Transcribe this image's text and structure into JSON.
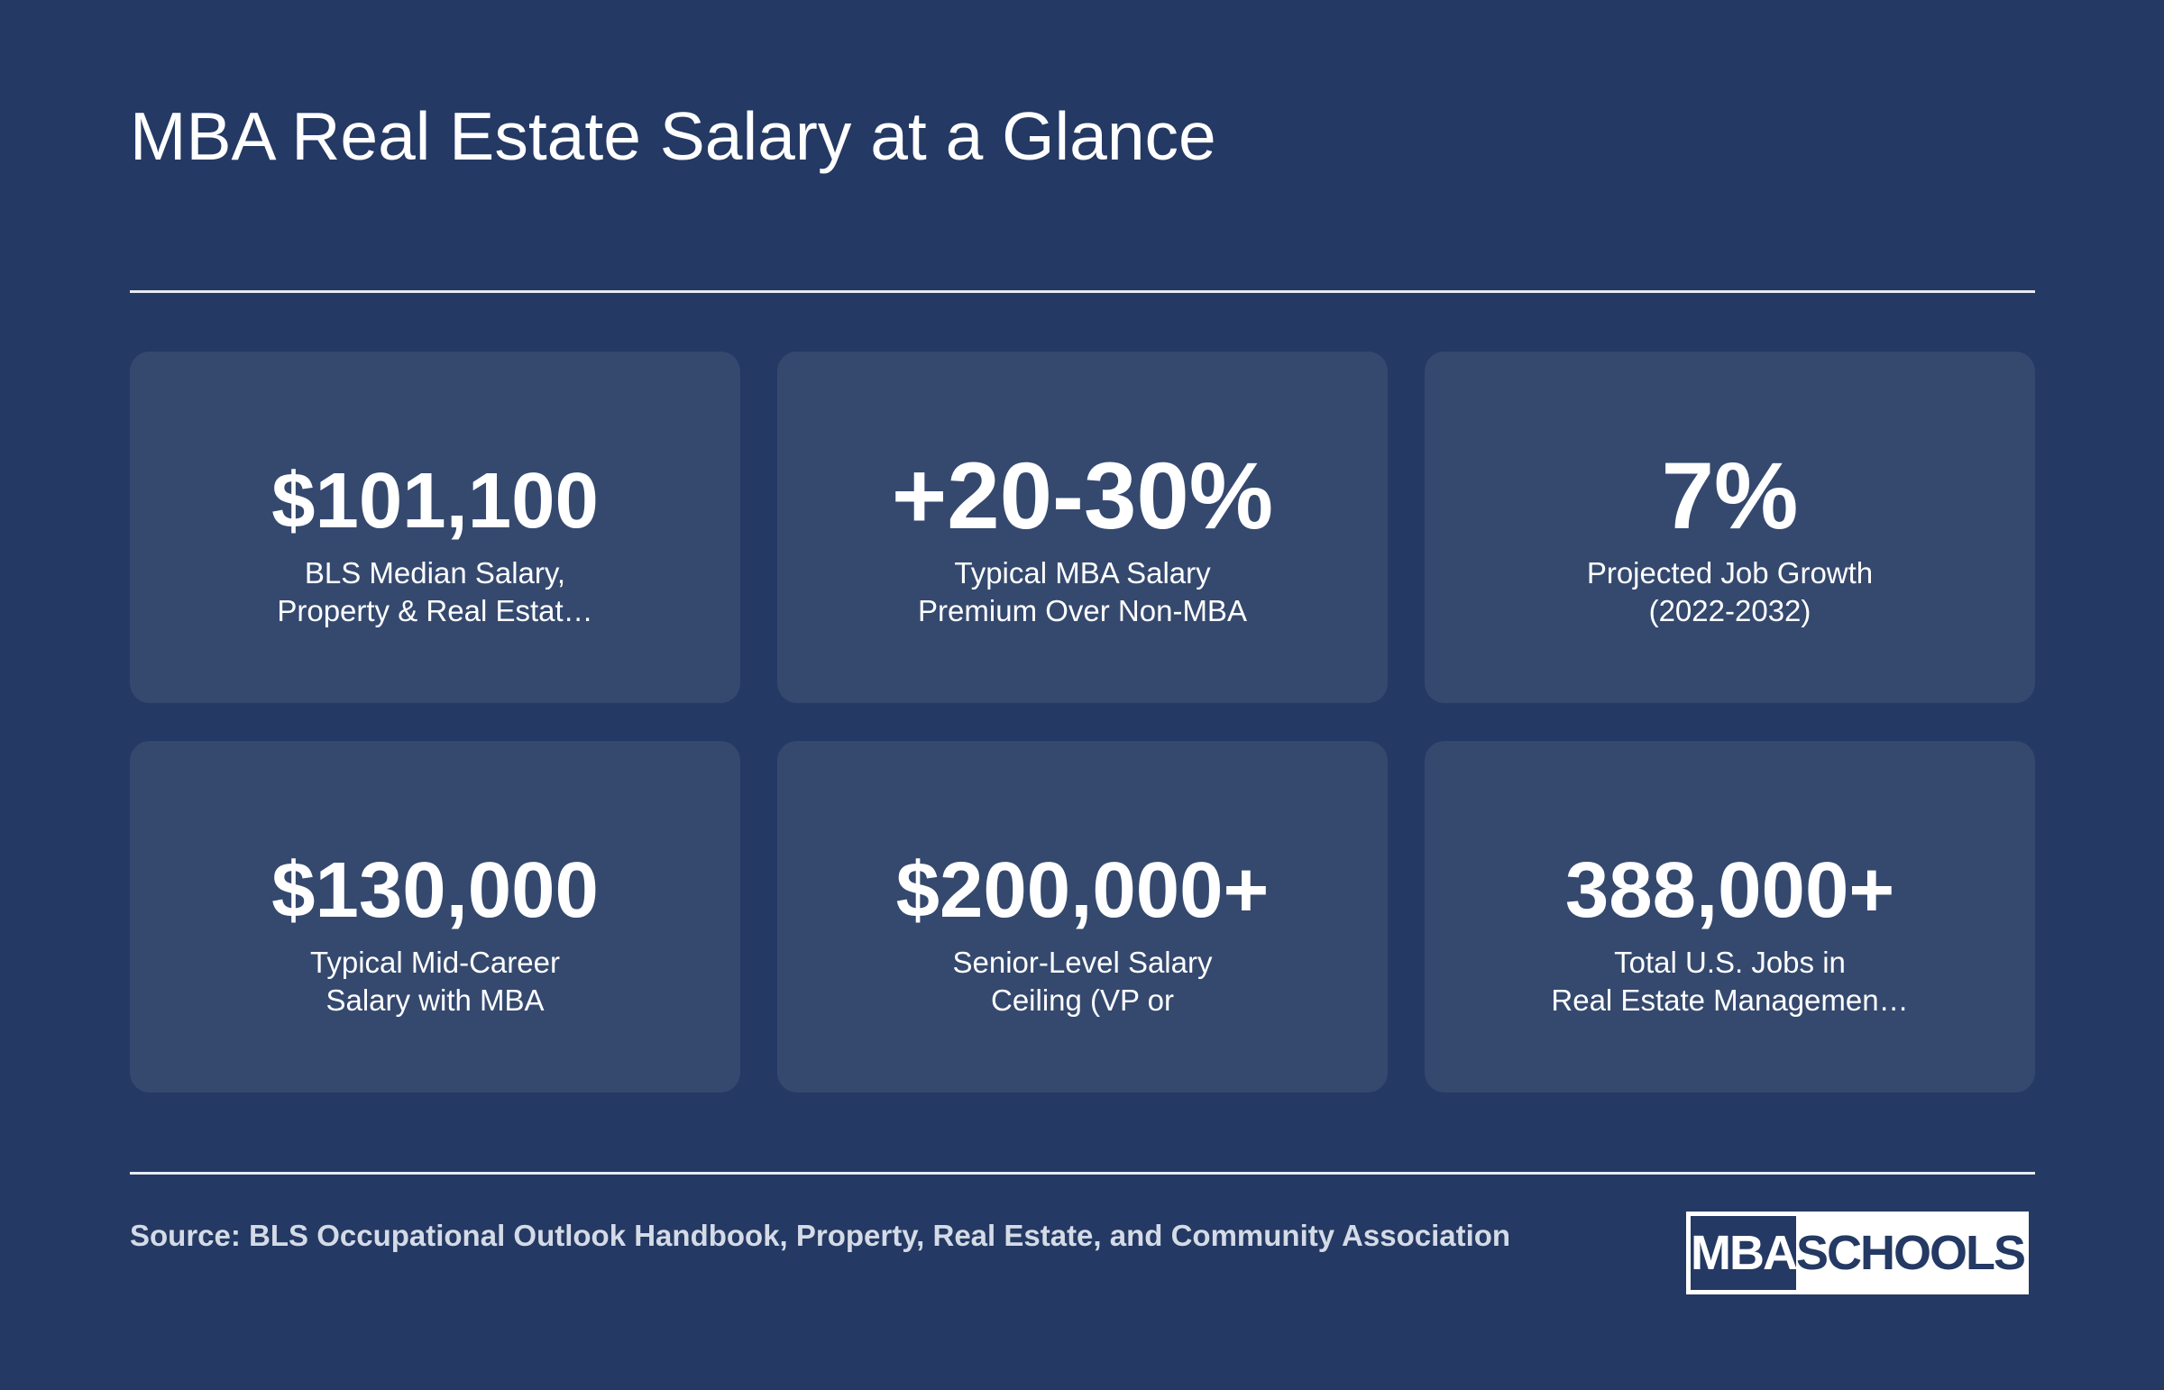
{
  "header": {
    "title": "MBA Real Estate Salary at a Glance"
  },
  "stats": [
    {
      "value": "$101,100",
      "label_lines": [
        "BLS Median Salary,",
        "Property & Real Estat…"
      ]
    },
    {
      "value": "+20-30%",
      "label_lines": [
        "Typical MBA Salary",
        "Premium Over Non-MBA"
      ]
    },
    {
      "value": "7%",
      "label_lines": [
        "Projected Job Growth",
        "(2022-2032)"
      ]
    },
    {
      "value": "$130,000",
      "label_lines": [
        "Typical Mid-Career",
        "Salary with MBA"
      ]
    },
    {
      "value": "$200,000+",
      "label_lines": [
        "Senior-Level Salary",
        "Ceiling (VP or"
      ]
    },
    {
      "value": "388,000+",
      "label_lines": [
        "Total U.S. Jobs in",
        "Real Estate Managemen…"
      ]
    }
  ],
  "footer": {
    "source": "Source: BLS Occupational Outlook Handbook, Property, Real Estate, and Community Association",
    "logo": {
      "left_text": "MBA",
      "right_text": "SCHOOLS"
    }
  },
  "colors": {
    "background": "#243963",
    "card": "#35496f",
    "text": "#ffffff",
    "source_text": "#d4dbe7"
  }
}
